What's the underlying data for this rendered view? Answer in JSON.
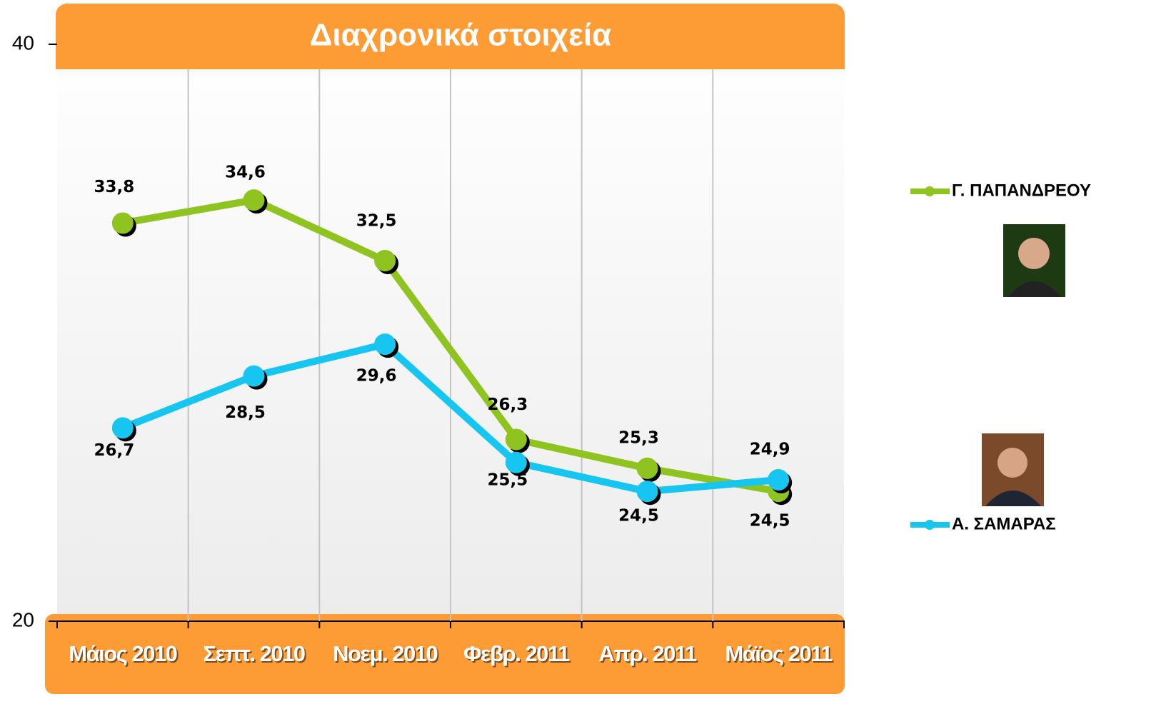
{
  "chart_data": {
    "type": "line",
    "title": "Διαχρονικά στοιχεία",
    "categories": [
      "Μάιος 2010",
      "Σεπτ. 2010",
      "Νοεμ. 2010",
      "Φεβρ. 2011",
      "Απρ. 2011",
      "Μάϊος 2011"
    ],
    "series": [
      {
        "name": "Γ. ΠΑΠΑΝΔΡΕΟΥ",
        "color": "#8fc31f",
        "values": [
          33.8,
          34.6,
          32.5,
          26.3,
          25.3,
          24.5
        ],
        "value_labels": [
          "33,8",
          "34,6",
          "32,5",
          "26,3",
          "25,3",
          "24,5"
        ]
      },
      {
        "name": "Α. ΣΑΜΑΡΑΣ",
        "color": "#16c6f0",
        "values": [
          26.7,
          28.5,
          29.6,
          25.5,
          24.5,
          24.9
        ],
        "value_labels": [
          "26,7",
          "28,5",
          "29,6",
          "25,5",
          "24,5",
          "24,9"
        ]
      }
    ],
    "ylim": [
      20,
      40
    ],
    "yticks": [
      20,
      40
    ],
    "grid": true
  }
}
